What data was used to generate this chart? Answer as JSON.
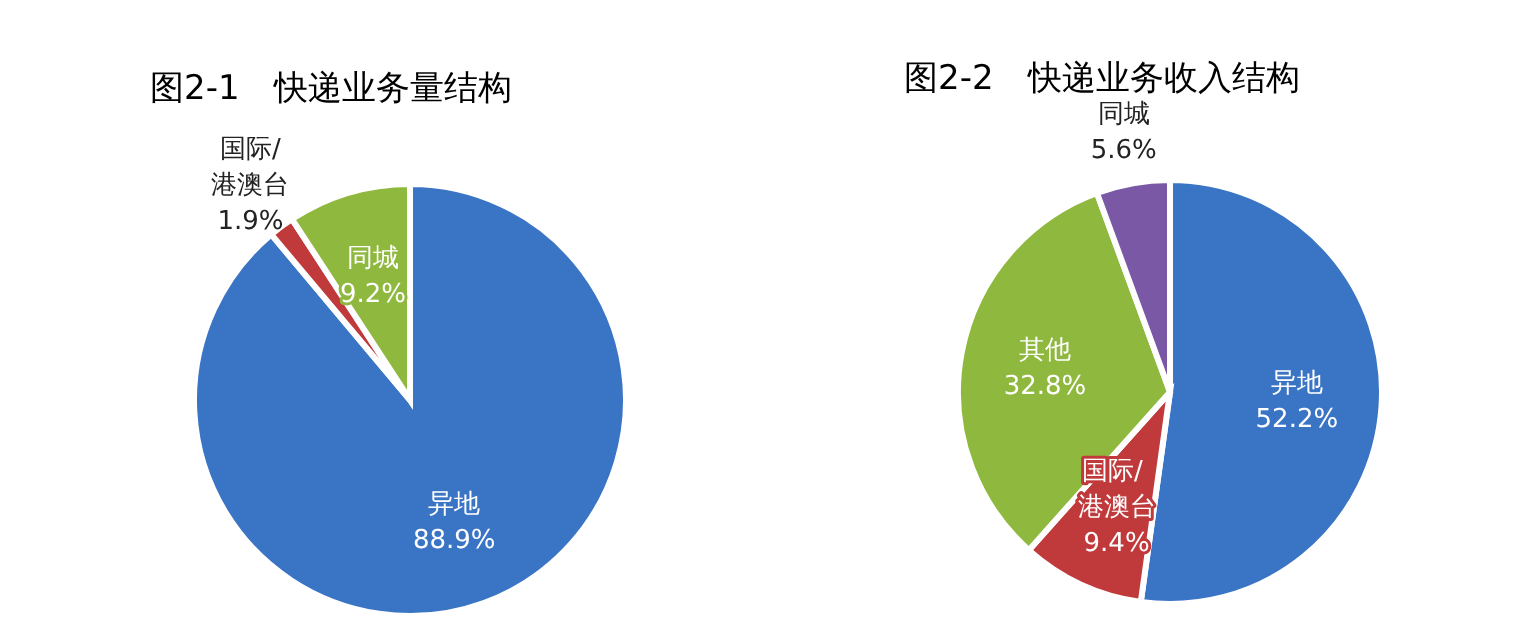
{
  "chart_data": [
    {
      "type": "pie",
      "title": "图2-1　快递业务量结构",
      "categories": [
        "异地",
        "国际/港澳台",
        "同城"
      ],
      "values": [
        88.9,
        1.9,
        9.2
      ],
      "value_labels": [
        "88.9%",
        "1.9%",
        "9.2%"
      ],
      "colors": [
        "#3a74c4",
        "#c0393b",
        "#8fb83e"
      ],
      "data_labels": true
    },
    {
      "type": "pie",
      "title": "图2-2　快递业务收入结构",
      "categories": [
        "异地",
        "国际/ 港澳台",
        "其他",
        "同城"
      ],
      "values": [
        52.2,
        9.4,
        32.8,
        5.6
      ],
      "value_labels": [
        "52.2%",
        "9.4%",
        "32.8%",
        "5.6%"
      ],
      "colors": [
        "#3a74c4",
        "#c0393b",
        "#8fb83e",
        "#7a58a6"
      ],
      "data_labels": true
    }
  ]
}
